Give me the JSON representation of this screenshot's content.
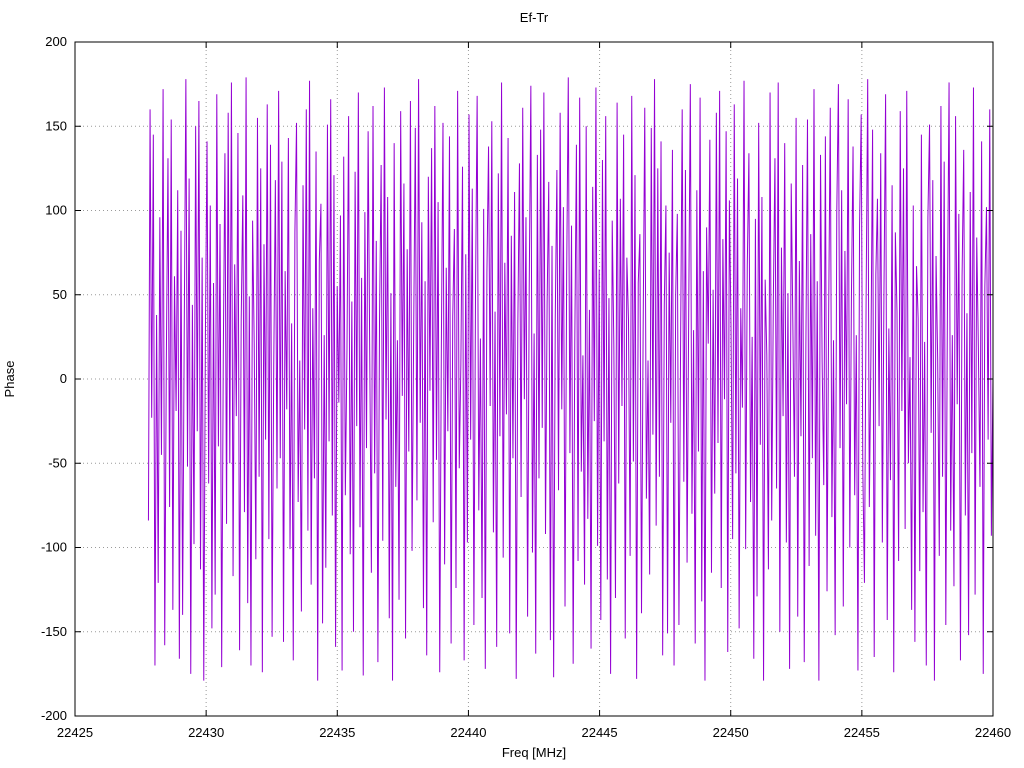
{
  "title": "Ef-Tr",
  "chart_data": {
    "type": "line",
    "title": "Ef-Tr",
    "xlabel": "Freq [MHz]",
    "ylabel": "Phase",
    "xlim": [
      22425,
      22460
    ],
    "ylim": [
      -200,
      200
    ],
    "x_ticks": [
      22425,
      22430,
      22435,
      22440,
      22445,
      22450,
      22455,
      22460
    ],
    "y_ticks": [
      -200,
      -150,
      -100,
      -50,
      0,
      50,
      100,
      150,
      200
    ],
    "grid": true,
    "legend": "none",
    "line_color": "#9400d3",
    "grid_color": "#9a9a9a",
    "series": [
      {
        "name": "phase",
        "x_start": 22427.8,
        "x_end": 22460.0,
        "values": [
          -84,
          160,
          -23,
          145,
          -170,
          38,
          -121,
          96,
          -45,
          172,
          -158,
          12,
          131,
          -76,
          154,
          -137,
          61,
          -19,
          112,
          -166,
          88,
          -140,
          29,
          178,
          -52,
          119,
          -175,
          44,
          -98,
          150,
          -31,
          165,
          -113,
          72,
          -179,
          25,
          141,
          -62,
          103,
          -148,
          57,
          -128,
          169,
          -40,
          92,
          -171,
          15,
          134,
          -86,
          158,
          -50,
          176,
          -117,
          68,
          -22,
          146,
          -161,
          35,
          109,
          -79,
          179,
          -133,
          49,
          -170,
          94,
          21,
          -107,
          155,
          -58,
          125,
          -174,
          80,
          -36,
          163,
          -95,
          139,
          -153,
          8,
          118,
          -65,
          171,
          -47,
          129,
          -156,
          64,
          -18,
          143,
          -101,
          33,
          -167,
          87,
          152,
          -73,
          11,
          -138,
          115,
          -30,
          160,
          -90,
          177,
          -122,
          42,
          -59,
          135,
          -179,
          70,
          104,
          -145,
          26,
          -112,
          151,
          -37,
          166,
          -81,
          121,
          -159,
          55,
          -14,
          97,
          -173,
          132,
          -69,
          17,
          156,
          -104,
          46,
          -150,
          123,
          -28,
          170,
          -88,
          60,
          -176,
          99,
          -41,
          147,
          13,
          -115,
          162,
          -56,
          82,
          -168,
          34,
          127,
          -96,
          173,
          -24,
          108,
          -142,
          51,
          -179,
          140,
          -64,
          23,
          -131,
          159,
          -10,
          116,
          -154,
          77,
          -43,
          165,
          -102,
          30,
          149,
          -72,
          178,
          -26,
          93,
          -136,
          58,
          -164,
          120,
          -7,
          137,
          -85,
          162,
          -48,
          105,
          -174,
          19,
          152,
          -110,
          66,
          -31,
          144,
          -157,
          37,
          89,
          -124,
          171,
          -53,
          9,
          126,
          -167,
          74,
          -97,
          157,
          -36,
          113,
          -146,
          52,
          168,
          -78,
          24,
          -130,
          101,
          -172,
          63,
          138,
          -16,
          153,
          -91,
          40,
          -159,
          122,
          -34,
          176,
          -106,
          69,
          -21,
          143,
          -151,
          85,
          -47,
          111,
          -178,
          32,
          128,
          -70,
          161,
          -12,
          96,
          -141,
          54,
          174,
          -103,
          27,
          -163,
          133,
          -59,
          148,
          -29,
          170,
          -92,
          45,
          117,
          -155,
          79,
          -177,
          36,
          124,
          -66,
          158,
          -18,
          102,
          -135,
          61,
          179,
          -44,
          91,
          -169,
          22,
          139,
          -108,
          167,
          -55,
          14,
          -122,
          150,
          -83,
          41,
          -160,
          114,
          -25,
          173,
          -99,
          65,
          -143,
          130,
          -37,
          156,
          -119,
          48,
          -175,
          94,
          20,
          -130,
          164,
          -62,
          107,
          -16,
          145,
          -154,
          72,
          35,
          -105,
          168,
          -49,
          121,
          -178,
          57,
          86,
          -139,
          28,
          161,
          -71,
          11,
          -116,
          149,
          -33,
          178,
          -87,
          125,
          -58,
          141,
          -164,
          44,
          103,
          -151,
          75,
          -26,
          136,
          -170,
          50,
          98,
          -146,
          17,
          160,
          -61,
          124,
          -109,
          39,
          175,
          -80,
          29,
          -157,
          112,
          -43,
          167,
          -132,
          64,
          -179,
          90,
          21,
          142,
          -115,
          53,
          -68,
          158,
          -38,
          171,
          -124,
          83,
          -12,
          147,
          -162,
          106,
          31,
          -95,
          163,
          -56,
          119,
          -148,
          42,
          -17,
          177,
          -101,
          67,
          134,
          -73,
          25,
          -166,
          95,
          -129,
          152,
          -39,
          108,
          -179,
          59,
          14,
          -113,
          170,
          -84,
          46,
          131,
          -65,
          176,
          -150,
          78,
          -22,
          140,
          -97,
          51,
          -172,
          116,
          33,
          -58,
          155,
          -141,
          70,
          -34,
          127,
          -168,
          18,
          154,
          -111,
          86,
          -47,
          172,
          -93,
          58,
          -179,
          133,
          10,
          -63,
          144,
          -126,
          37,
          161,
          -82,
          23,
          -152,
          99,
          175,
          -41,
          112,
          -135,
          76,
          -15,
          166,
          -100,
          49,
          138,
          -69,
          26,
          -173,
          91,
          157,
          -54,
          -121,
          43,
          178,
          -76,
          16,
          148,
          -165,
          62,
          107,
          -28,
          134,
          -97,
          53,
          169,
          -143,
          30,
          -60,
          115,
          -174,
          87,
          40,
          -108,
          159,
          -19,
          125,
          -89,
          171,
          -50,
          13,
          -137,
          103,
          -156,
          67,
          36,
          -114,
          145,
          -79,
          22,
          -170,
          96,
          151,
          -32,
          118,
          -179,
          73,
          12,
          -105,
          162,
          -58,
          129,
          -146,
          45,
          176,
          -90,
          26,
          -123,
          156,
          -15,
          98,
          -167,
          61,
          136,
          -81,
          39,
          -152,
          111,
          -44,
          173,
          -128,
          84,
          19,
          -64,
          141,
          -175,
          55,
          102,
          -36,
          160,
          -93,
          1
        ]
      }
    ]
  }
}
